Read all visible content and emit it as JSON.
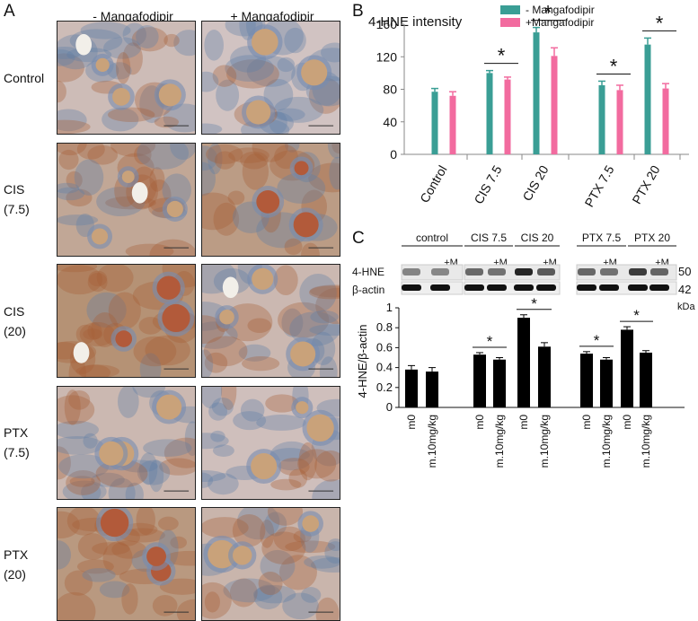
{
  "panel_a": {
    "letter": "A",
    "col_headers": [
      "- Mangafodipir",
      "+ Mangafodipir"
    ],
    "rows": [
      {
        "label": "Control",
        "stain": [
          0.25,
          0.15
        ]
      },
      {
        "label": "CIS\n(7.5)",
        "stain": [
          0.55,
          0.7
        ]
      },
      {
        "label": "CIS\n(20)",
        "stain": [
          0.85,
          0.3
        ]
      },
      {
        "label": "PTX\n(7.5)",
        "stain": [
          0.3,
          0.2
        ]
      },
      {
        "label": "PTX\n(20)",
        "stain": [
          0.75,
          0.35
        ]
      }
    ]
  },
  "panel_b": {
    "letter": "B",
    "colors": {
      "minus": "#3a9e95",
      "plus": "#f26b9f"
    },
    "legend": [
      "- Mangafodipir",
      "+Mangafodipir"
    ],
    "significance": "*"
  },
  "panel_c": {
    "letter": "C",
    "blot_groups": [
      "control",
      "CIS 7.5",
      "CIS 20",
      "PTX 7.5",
      "PTX 20"
    ],
    "blot_plus_label": "+M",
    "blot_rows": [
      "4-HNE",
      "β-actin"
    ],
    "blot_mw": [
      "50",
      "42",
      "kDa"
    ],
    "significance": "*"
  },
  "chart_data": [
    {
      "type": "bar",
      "title": "4-HNE intensity",
      "categories": [
        "Control",
        "CIS 7.5",
        "CIS 20",
        "PTX 7.5",
        "PTX 20"
      ],
      "series": [
        {
          "name": "- Mangafodipir",
          "values": [
            77,
            100,
            150,
            85,
            135
          ],
          "errors": [
            4,
            3,
            6,
            5,
            8
          ]
        },
        {
          "name": "+Mangafodipir",
          "values": [
            72,
            92,
            121,
            79,
            81
          ],
          "errors": [
            5,
            3,
            10,
            6,
            6
          ]
        }
      ],
      "ylim": [
        0,
        160
      ],
      "yticks": [
        0,
        40,
        80,
        120,
        160
      ],
      "xlabel": "",
      "ylabel": "",
      "legend_position": "top-right",
      "significant_pairs": [
        "CIS 7.5",
        "CIS 20",
        "PTX 7.5",
        "PTX 20"
      ]
    },
    {
      "type": "bar",
      "title": "",
      "categories": [
        "m0",
        "m.10mg/kg",
        "m0",
        "m.10mg/kg",
        "m0",
        "m.10mg/kg",
        "m0",
        "m.10mg/kg",
        "m0",
        "m.10mg/kg"
      ],
      "groups": [
        "control",
        "CIS 7.5",
        "CIS 20",
        "PTX 7.5",
        "PTX 20"
      ],
      "values": [
        0.38,
        0.36,
        0.53,
        0.48,
        0.9,
        0.61,
        0.54,
        0.48,
        0.78,
        0.55
      ],
      "errors": [
        0.04,
        0.04,
        0.02,
        0.02,
        0.03,
        0.04,
        0.02,
        0.02,
        0.03,
        0.02
      ],
      "ylim": [
        0,
        1
      ],
      "yticks": [
        0,
        0.2,
        0.4,
        0.6,
        0.8,
        1
      ],
      "ylabel": "4-HNE/β-actin",
      "xlabel": "",
      "significant_pairs": [
        "CIS 7.5",
        "CIS 20",
        "PTX 7.5",
        "PTX 20"
      ]
    }
  ]
}
